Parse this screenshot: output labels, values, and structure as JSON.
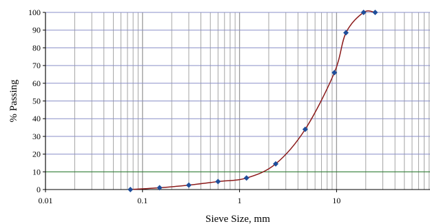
{
  "chart_data": {
    "type": "line",
    "title": "",
    "xlabel": "Sieve Size, mm",
    "ylabel": "% Passing",
    "x_scale": "log",
    "xlim": [
      0.01,
      100
    ],
    "ylim": [
      0,
      100
    ],
    "x_ticks": [
      "0.01",
      "0.1",
      "1",
      "10"
    ],
    "y_ticks": [
      "0",
      "10",
      "20",
      "30",
      "40",
      "50",
      "60",
      "70",
      "80",
      "90",
      "100"
    ],
    "grid": true,
    "highlight_gridline_y": 10,
    "series": [
      {
        "points": [
          {
            "x": 0.075,
            "y": 0
          },
          {
            "x": 0.15,
            "y": 1
          },
          {
            "x": 0.3,
            "y": 2.5
          },
          {
            "x": 0.6,
            "y": 4.5
          },
          {
            "x": 1.18,
            "y": 6.5
          },
          {
            "x": 2.36,
            "y": 14.5
          },
          {
            "x": 4.75,
            "y": 34
          },
          {
            "x": 9.5,
            "y": 66
          },
          {
            "x": 12.5,
            "y": 88.5
          },
          {
            "x": 19,
            "y": 100
          },
          {
            "x": 25,
            "y": 100
          }
        ]
      }
    ],
    "colors": {
      "line": "#8b1a1a",
      "marker": "#1f4e9a",
      "gridline_major": "#8a8fc8",
      "gridline_vertical": "#9a9a9a",
      "highlight_gridline": "#2e7d32"
    }
  }
}
